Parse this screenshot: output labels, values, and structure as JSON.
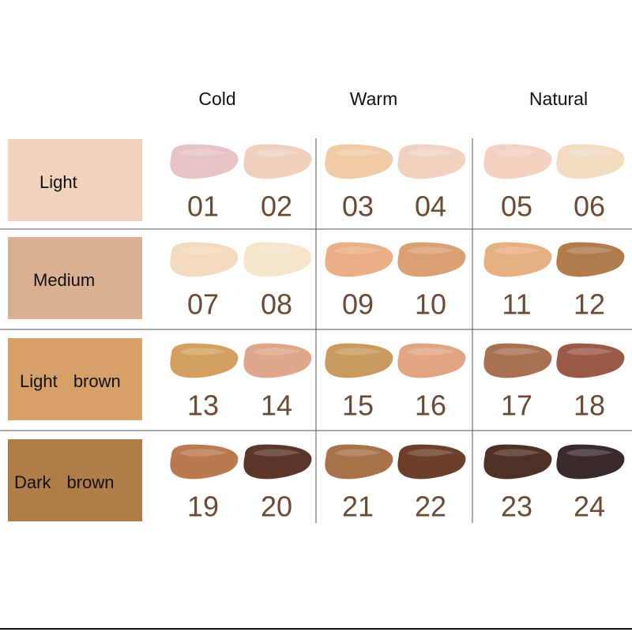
{
  "column_headers": [
    "Cold",
    "Warm",
    "Natural"
  ],
  "rows": [
    {
      "label": "Light",
      "color": "#f1d3bd",
      "shades": [
        {
          "number": "01",
          "color": "#e8c3c6"
        },
        {
          "number": "02",
          "color": "#f0d0bd"
        },
        {
          "number": "03",
          "color": "#f0cba6"
        },
        {
          "number": "04",
          "color": "#f1d2c0"
        },
        {
          "number": "05",
          "color": "#f3d0c0"
        },
        {
          "number": "06",
          "color": "#f1dcc0"
        }
      ]
    },
    {
      "label": "Medium",
      "color": "#d9b192",
      "shades": [
        {
          "number": "07",
          "color": "#f3d9bf"
        },
        {
          "number": "08",
          "color": "#f6e6cb"
        },
        {
          "number": "09",
          "color": "#eaaf84"
        },
        {
          "number": "10",
          "color": "#d9a072"
        },
        {
          "number": "11",
          "color": "#e7b083"
        },
        {
          "number": "12",
          "color": "#b07c4c"
        }
      ]
    },
    {
      "label": "Light brown",
      "color": "#d7a068",
      "shades": [
        {
          "number": "13",
          "color": "#d4a060"
        },
        {
          "number": "14",
          "color": "#dea68a"
        },
        {
          "number": "15",
          "color": "#c99a5e"
        },
        {
          "number": "16",
          "color": "#e2a582"
        },
        {
          "number": "17",
          "color": "#a87152"
        },
        {
          "number": "18",
          "color": "#9a5a48"
        }
      ]
    },
    {
      "label": "Dark brown",
      "color": "#b07d49",
      "shades": [
        {
          "number": "19",
          "color": "#b97a4e"
        },
        {
          "number": "20",
          "color": "#5a3528"
        },
        {
          "number": "21",
          "color": "#a8714a"
        },
        {
          "number": "22",
          "color": "#6b3f2b"
        },
        {
          "number": "23",
          "color": "#4e3024"
        },
        {
          "number": "24",
          "color": "#3a2a2c"
        }
      ]
    }
  ]
}
